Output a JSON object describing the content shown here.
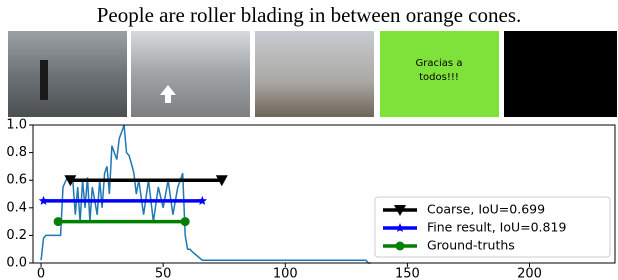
{
  "title": "People are roller blading in between orange cones.",
  "thumbnail_text": [
    "Gracias a",
    "todos!!!"
  ],
  "chart_data": {
    "type": "line",
    "xlim": [
      -3.3,
      235
    ],
    "ylim": [
      0,
      1
    ],
    "xticks": [
      0,
      50,
      100,
      150,
      200
    ],
    "yticks": [
      {
        "value": 0,
        "label": "0.0"
      },
      0.2,
      0.4,
      0.6,
      0.8,
      {
        "value": 1,
        "label": "1.0"
      }
    ],
    "legend": "lower right",
    "series": [
      {
        "color": "#1f77b4",
        "marker": "none",
        "x": [
          0,
          1,
          2,
          5,
          8,
          9,
          11,
          13,
          14,
          15,
          16,
          17,
          18,
          19,
          20,
          21,
          22,
          23,
          24,
          25,
          26,
          27,
          28,
          29,
          30,
          31,
          32,
          33,
          34,
          35,
          36,
          37,
          38,
          39,
          40,
          42,
          44,
          46,
          48,
          50,
          52,
          54,
          56,
          57,
          58,
          59,
          60,
          61,
          62,
          66,
          133,
          134,
          135
        ],
        "values": [
          0.02,
          0.18,
          0.2,
          0.2,
          0.2,
          0.55,
          0.63,
          0.6,
          0.35,
          0.55,
          0.3,
          0.6,
          0.4,
          0.62,
          0.3,
          0.55,
          0.45,
          0.35,
          0.6,
          0.4,
          0.65,
          0.7,
          0.5,
          0.85,
          0.8,
          0.75,
          0.9,
          0.95,
          1.0,
          0.8,
          0.78,
          0.72,
          0.65,
          0.5,
          0.6,
          0.35,
          0.6,
          0.3,
          0.55,
          0.4,
          0.6,
          0.35,
          0.55,
          0.6,
          0.65,
          0.2,
          0.1,
          0.1,
          0.08,
          0.02,
          0.02,
          0.0,
          0.0
        ]
      },
      {
        "name": "Coarse, IoU=0.699",
        "color": "#000000",
        "marker": "triangle-down",
        "x": [
          12,
          74
        ],
        "values": [
          0.6,
          0.6
        ]
      },
      {
        "name": "Fine result, IoU=0.819",
        "color": "#0000ff",
        "marker": "star",
        "x": [
          1,
          66
        ],
        "values": [
          0.45,
          0.45
        ]
      },
      {
        "name": "Ground-truths",
        "color": "#008000",
        "marker": "circle",
        "x": [
          7,
          59
        ],
        "values": [
          0.3,
          0.3
        ]
      }
    ]
  }
}
